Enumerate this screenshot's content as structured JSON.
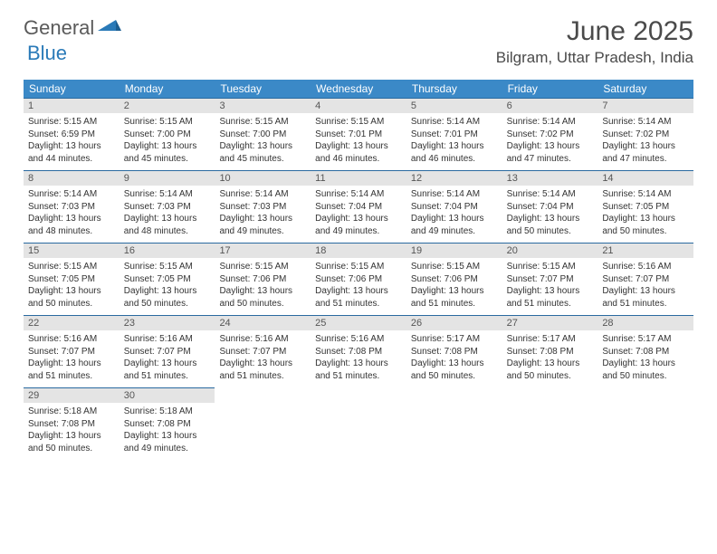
{
  "logo": {
    "general": "General",
    "blue": "Blue"
  },
  "title": "June 2025",
  "location": "Bilgram, Uttar Pradesh, India",
  "colors": {
    "header_bg": "#3b89c7",
    "header_text": "#ffffff",
    "daynum_bg": "#e4e4e4",
    "border": "#2a6aa0",
    "text": "#333333",
    "logo_gray": "#5a5a5a",
    "logo_blue": "#2a7ab8"
  },
  "weekdays": [
    "Sunday",
    "Monday",
    "Tuesday",
    "Wednesday",
    "Thursday",
    "Friday",
    "Saturday"
  ],
  "days": [
    {
      "n": "1",
      "sr": "5:15 AM",
      "ss": "6:59 PM",
      "dl": "13 hours and 44 minutes."
    },
    {
      "n": "2",
      "sr": "5:15 AM",
      "ss": "7:00 PM",
      "dl": "13 hours and 45 minutes."
    },
    {
      "n": "3",
      "sr": "5:15 AM",
      "ss": "7:00 PM",
      "dl": "13 hours and 45 minutes."
    },
    {
      "n": "4",
      "sr": "5:15 AM",
      "ss": "7:01 PM",
      "dl": "13 hours and 46 minutes."
    },
    {
      "n": "5",
      "sr": "5:14 AM",
      "ss": "7:01 PM",
      "dl": "13 hours and 46 minutes."
    },
    {
      "n": "6",
      "sr": "5:14 AM",
      "ss": "7:02 PM",
      "dl": "13 hours and 47 minutes."
    },
    {
      "n": "7",
      "sr": "5:14 AM",
      "ss": "7:02 PM",
      "dl": "13 hours and 47 minutes."
    },
    {
      "n": "8",
      "sr": "5:14 AM",
      "ss": "7:03 PM",
      "dl": "13 hours and 48 minutes."
    },
    {
      "n": "9",
      "sr": "5:14 AM",
      "ss": "7:03 PM",
      "dl": "13 hours and 48 minutes."
    },
    {
      "n": "10",
      "sr": "5:14 AM",
      "ss": "7:03 PM",
      "dl": "13 hours and 49 minutes."
    },
    {
      "n": "11",
      "sr": "5:14 AM",
      "ss": "7:04 PM",
      "dl": "13 hours and 49 minutes."
    },
    {
      "n": "12",
      "sr": "5:14 AM",
      "ss": "7:04 PM",
      "dl": "13 hours and 49 minutes."
    },
    {
      "n": "13",
      "sr": "5:14 AM",
      "ss": "7:04 PM",
      "dl": "13 hours and 50 minutes."
    },
    {
      "n": "14",
      "sr": "5:14 AM",
      "ss": "7:05 PM",
      "dl": "13 hours and 50 minutes."
    },
    {
      "n": "15",
      "sr": "5:15 AM",
      "ss": "7:05 PM",
      "dl": "13 hours and 50 minutes."
    },
    {
      "n": "16",
      "sr": "5:15 AM",
      "ss": "7:05 PM",
      "dl": "13 hours and 50 minutes."
    },
    {
      "n": "17",
      "sr": "5:15 AM",
      "ss": "7:06 PM",
      "dl": "13 hours and 50 minutes."
    },
    {
      "n": "18",
      "sr": "5:15 AM",
      "ss": "7:06 PM",
      "dl": "13 hours and 51 minutes."
    },
    {
      "n": "19",
      "sr": "5:15 AM",
      "ss": "7:06 PM",
      "dl": "13 hours and 51 minutes."
    },
    {
      "n": "20",
      "sr": "5:15 AM",
      "ss": "7:07 PM",
      "dl": "13 hours and 51 minutes."
    },
    {
      "n": "21",
      "sr": "5:16 AM",
      "ss": "7:07 PM",
      "dl": "13 hours and 51 minutes."
    },
    {
      "n": "22",
      "sr": "5:16 AM",
      "ss": "7:07 PM",
      "dl": "13 hours and 51 minutes."
    },
    {
      "n": "23",
      "sr": "5:16 AM",
      "ss": "7:07 PM",
      "dl": "13 hours and 51 minutes."
    },
    {
      "n": "24",
      "sr": "5:16 AM",
      "ss": "7:07 PM",
      "dl": "13 hours and 51 minutes."
    },
    {
      "n": "25",
      "sr": "5:16 AM",
      "ss": "7:08 PM",
      "dl": "13 hours and 51 minutes."
    },
    {
      "n": "26",
      "sr": "5:17 AM",
      "ss": "7:08 PM",
      "dl": "13 hours and 50 minutes."
    },
    {
      "n": "27",
      "sr": "5:17 AM",
      "ss": "7:08 PM",
      "dl": "13 hours and 50 minutes."
    },
    {
      "n": "28",
      "sr": "5:17 AM",
      "ss": "7:08 PM",
      "dl": "13 hours and 50 minutes."
    },
    {
      "n": "29",
      "sr": "5:18 AM",
      "ss": "7:08 PM",
      "dl": "13 hours and 50 minutes."
    },
    {
      "n": "30",
      "sr": "5:18 AM",
      "ss": "7:08 PM",
      "dl": "13 hours and 49 minutes."
    }
  ],
  "labels": {
    "sunrise": "Sunrise: ",
    "sunset": "Sunset: ",
    "daylight": "Daylight: "
  }
}
